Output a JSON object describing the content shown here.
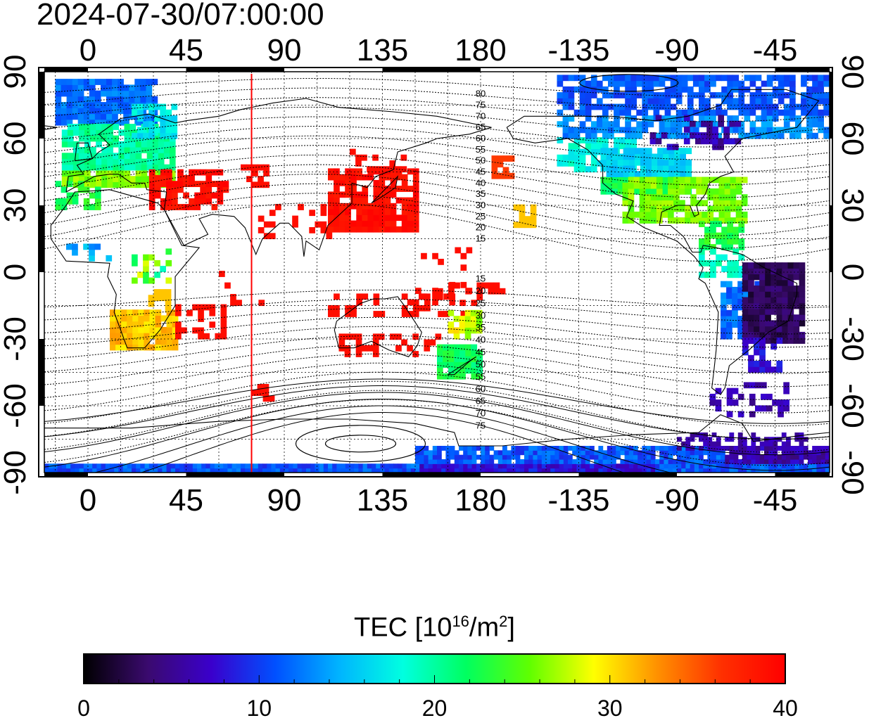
{
  "timestamp": "2024-07-30/07:00:00",
  "map": {
    "lon_ticks": [
      {
        "lon": 0,
        "label": "0"
      },
      {
        "lon": 45,
        "label": "45"
      },
      {
        "lon": 90,
        "label": "90"
      },
      {
        "lon": 135,
        "label": "135"
      },
      {
        "lon": 180,
        "label": "180"
      },
      {
        "lon": 225,
        "label": "-135"
      },
      {
        "lon": 270,
        "label": "-90"
      },
      {
        "lon": 315,
        "label": "-45"
      }
    ],
    "lat_ticks": [
      {
        "lat": 90,
        "label": "90"
      },
      {
        "lat": 60,
        "label": "60"
      },
      {
        "lat": 30,
        "label": "30"
      },
      {
        "lat": 0,
        "label": "0"
      },
      {
        "lat": -30,
        "label": "-30"
      },
      {
        "lat": -60,
        "label": "-60"
      },
      {
        "lat": -90,
        "label": "-90"
      }
    ],
    "noon_meridian_lon": 75,
    "noon_meridian_color": "#ff0000",
    "contour_labels_north": [
      "80",
      "75",
      "70",
      "65",
      "60",
      "55",
      "50",
      "45",
      "40",
      "35",
      "30",
      "25",
      "20",
      "15"
    ],
    "contour_labels_south": [
      "15",
      "20",
      "25",
      "30",
      "35",
      "40",
      "45",
      "50",
      "55",
      "60",
      "65",
      "70",
      "75"
    ]
  },
  "colorbar": {
    "title": "TEC  [10",
    "title_exp": "16",
    "title_unit": "/m",
    "title_unit_exp": "2",
    "title_close": "]",
    "min": 0,
    "max": 40,
    "labels": [
      "0",
      "10",
      "20",
      "30",
      "40"
    ],
    "stops": [
      "#000000",
      "#3a0a6e",
      "#3a00cc",
      "#0050ff",
      "#00b4ff",
      "#00ffe0",
      "#00ff60",
      "#60ff00",
      "#ffff00",
      "#ff9000",
      "#ff3000",
      "#ff0000"
    ]
  },
  "chart_data": {
    "type": "heatmap",
    "title": "2024-07-30/07:00:00",
    "xlabel": "",
    "ylabel": "",
    "xlim": [
      -20,
      340
    ],
    "ylim": [
      -90,
      90
    ],
    "colorbar_label": "TEC [10^16/m^2]",
    "colorbar_range": [
      0,
      40
    ],
    "regions": [
      {
        "lon_range": [
          -10,
          40
        ],
        "lat_range": [
          35,
          70
        ],
        "tec": 20
      },
      {
        "lon_range": [
          -15,
          30
        ],
        "lat_range": [
          65,
          85
        ],
        "tec": 13
      },
      {
        "lon_range": [
          30,
          60
        ],
        "lat_range": [
          28,
          45
        ],
        "tec": 40
      },
      {
        "lon_range": [
          15,
          35
        ],
        "lat_range": [
          -35,
          -20
        ],
        "tec": 32
      },
      {
        "lon_range": [
          115,
          150
        ],
        "lat_range": [
          20,
          45
        ],
        "tec": 40
      },
      {
        "lon_range": [
          165,
          180
        ],
        "lat_range": [
          -47,
          -35
        ],
        "tec": 22
      },
      {
        "lon_range": [
          230,
          290
        ],
        "lat_range": [
          25,
          55
        ],
        "tec": 25
      },
      {
        "lon_range": [
          215,
          340
        ],
        "lat_range": [
          60,
          85
        ],
        "tec": 13
      },
      {
        "lon_range": [
          300,
          325
        ],
        "lat_range": [
          -30,
          0
        ],
        "tec": 3
      },
      {
        "lon_range": [
          -20,
          340
        ],
        "lat_range": [
          -90,
          -80
        ],
        "tec": 12
      }
    ]
  }
}
